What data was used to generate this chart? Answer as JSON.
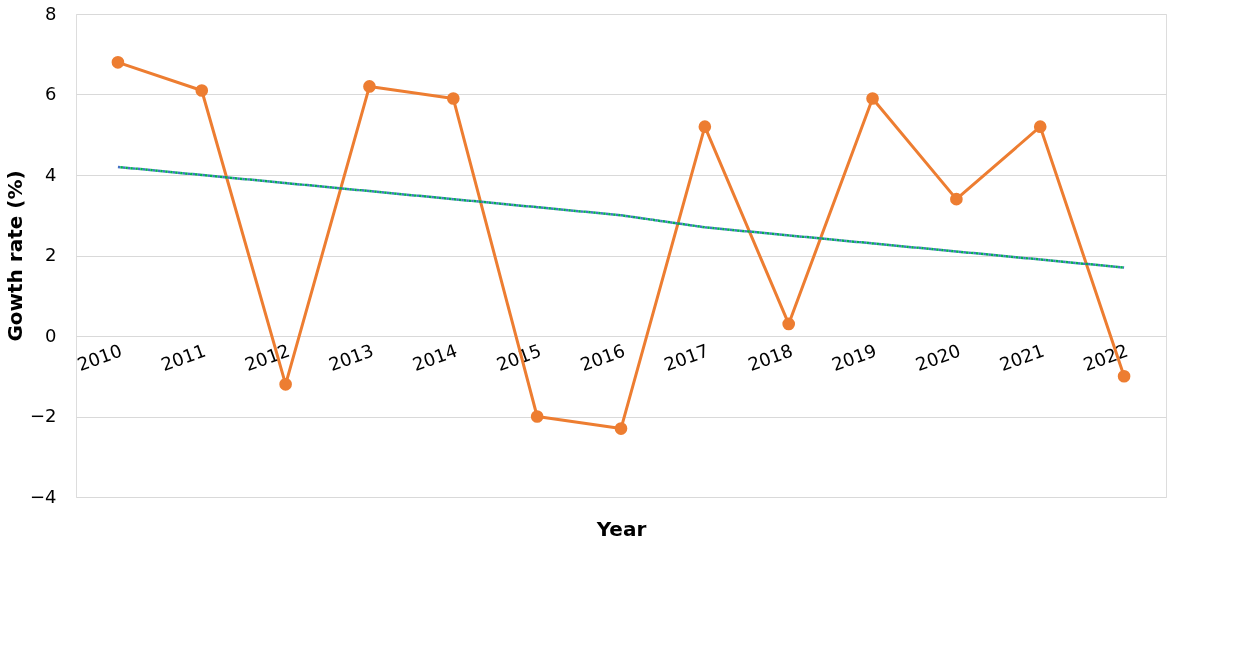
{
  "chart_data": {
    "type": "line",
    "xlabel": "Year",
    "ylabel": "Gowth rate (%)",
    "categories": [
      "2010",
      "2011",
      "2012",
      "2013",
      "2014",
      "2015",
      "2016",
      "2017",
      "2018",
      "2019",
      "2020",
      "2021",
      "2022"
    ],
    "series": [
      {
        "color": "#ed7d31",
        "marker": "circle",
        "line_style": "solid",
        "values": [
          6.8,
          6.1,
          -1.2,
          6.2,
          5.9,
          -2.0,
          -2.3,
          5.2,
          0.3,
          5.9,
          3.4,
          5.2,
          -1.0
        ]
      },
      {
        "color": "#4472c4",
        "marker": "none",
        "line_style": "dotted",
        "values": [
          4.2,
          4.0,
          3.8,
          3.6,
          3.4,
          3.2,
          3.0,
          2.7,
          2.5,
          2.3,
          2.1,
          1.9,
          1.7
        ]
      },
      {
        "color": "#00b050",
        "marker": "none",
        "line_style": "dotted",
        "values": [
          4.2,
          4.0,
          3.8,
          3.6,
          3.4,
          3.2,
          3.0,
          2.7,
          2.5,
          2.3,
          2.1,
          1.9,
          1.7
        ]
      }
    ],
    "ylim": [
      -4,
      8
    ],
    "yticks": [
      -4,
      -2,
      0,
      2,
      4,
      6,
      8
    ],
    "grid": "y"
  }
}
